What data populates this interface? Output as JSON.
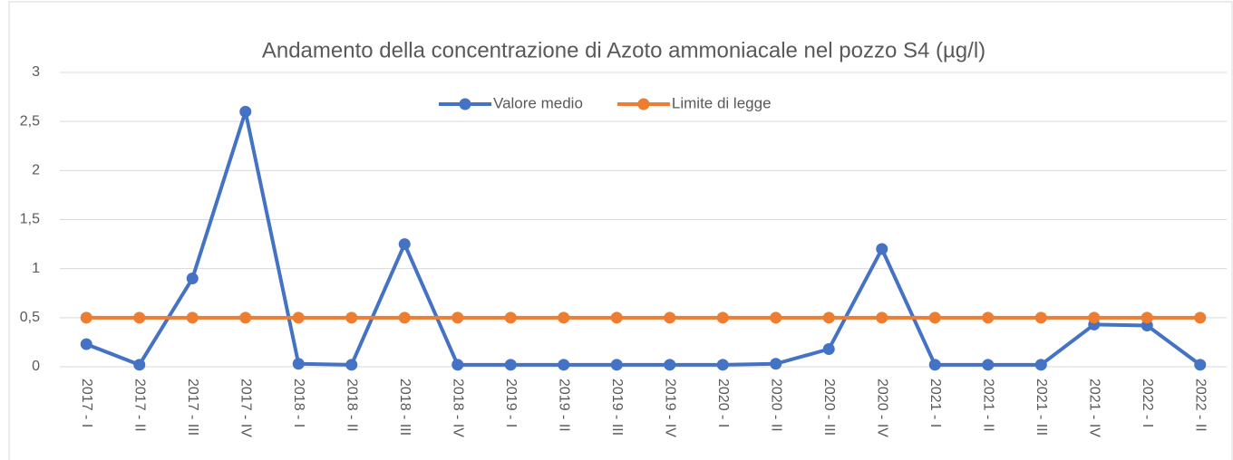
{
  "chart_data": {
    "type": "line",
    "title": "Andamento della concentrazione di Azoto ammoniacale nel pozzo S4 (µg/l)",
    "categories": [
      "2017 - I",
      "2017 - II",
      "2017 - III",
      "2017 - IV",
      "2018 - I",
      "2018 - II",
      "2018 - III",
      "2018 - IV",
      "2019 - I",
      "2019 - II",
      "2019 - III",
      "2019 - IV",
      "2020 - I",
      "2020 - II",
      "2020 - III",
      "2020 - IV",
      "2021 - I",
      "2021 - II",
      "2021 - III",
      "2021 - IV",
      "2022 - I",
      "2022 - II"
    ],
    "series": [
      {
        "name": "Valore medio",
        "color": "#4472c4",
        "values": [
          0.23,
          0.02,
          0.9,
          2.6,
          0.03,
          0.02,
          1.25,
          0.02,
          0.02,
          0.02,
          0.02,
          0.02,
          0.02,
          0.03,
          0.18,
          1.2,
          0.02,
          0.02,
          0.02,
          0.43,
          0.42,
          0.02
        ]
      },
      {
        "name": "Limite di legge",
        "color": "#ed7d31",
        "values": [
          0.5,
          0.5,
          0.5,
          0.5,
          0.5,
          0.5,
          0.5,
          0.5,
          0.5,
          0.5,
          0.5,
          0.5,
          0.5,
          0.5,
          0.5,
          0.5,
          0.5,
          0.5,
          0.5,
          0.5,
          0.5,
          0.5
        ]
      }
    ],
    "ylim": [
      0,
      3
    ],
    "yticks": [
      0,
      {
        "value": 0.5,
        "label": "0,5"
      },
      1,
      {
        "value": 1.5,
        "label": "1,5"
      },
      2,
      {
        "value": 2.5,
        "label": "2,5"
      },
      3
    ],
    "grid": true,
    "legend": "top"
  }
}
